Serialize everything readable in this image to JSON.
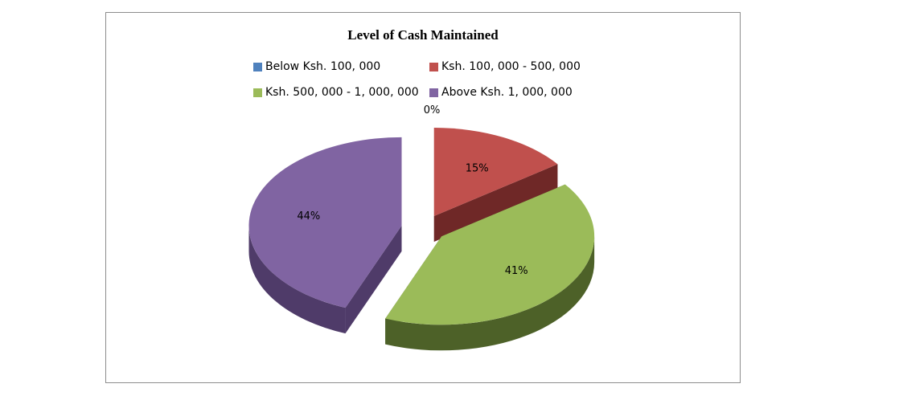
{
  "chart_data": {
    "type": "pie",
    "title": "Level of Cash Maintained",
    "categories": [
      "Below Ksh. 100, 000",
      "Ksh. 100, 000 - 500, 000",
      "Ksh. 500, 000 - 1, 000, 000",
      "Above Ksh. 1, 000, 000"
    ],
    "values": [
      0,
      15,
      41,
      44
    ],
    "data_labels": [
      "0%",
      "15%",
      "41%",
      "44%"
    ],
    "colors": [
      "#4f81bd",
      "#c0504d",
      "#9bbb59",
      "#8064a2"
    ],
    "side_colors": [
      "#2c4d75",
      "#6f2827",
      "#4d6128",
      "#4f3b69"
    ],
    "legend": "top",
    "style": "3d-exploded"
  }
}
